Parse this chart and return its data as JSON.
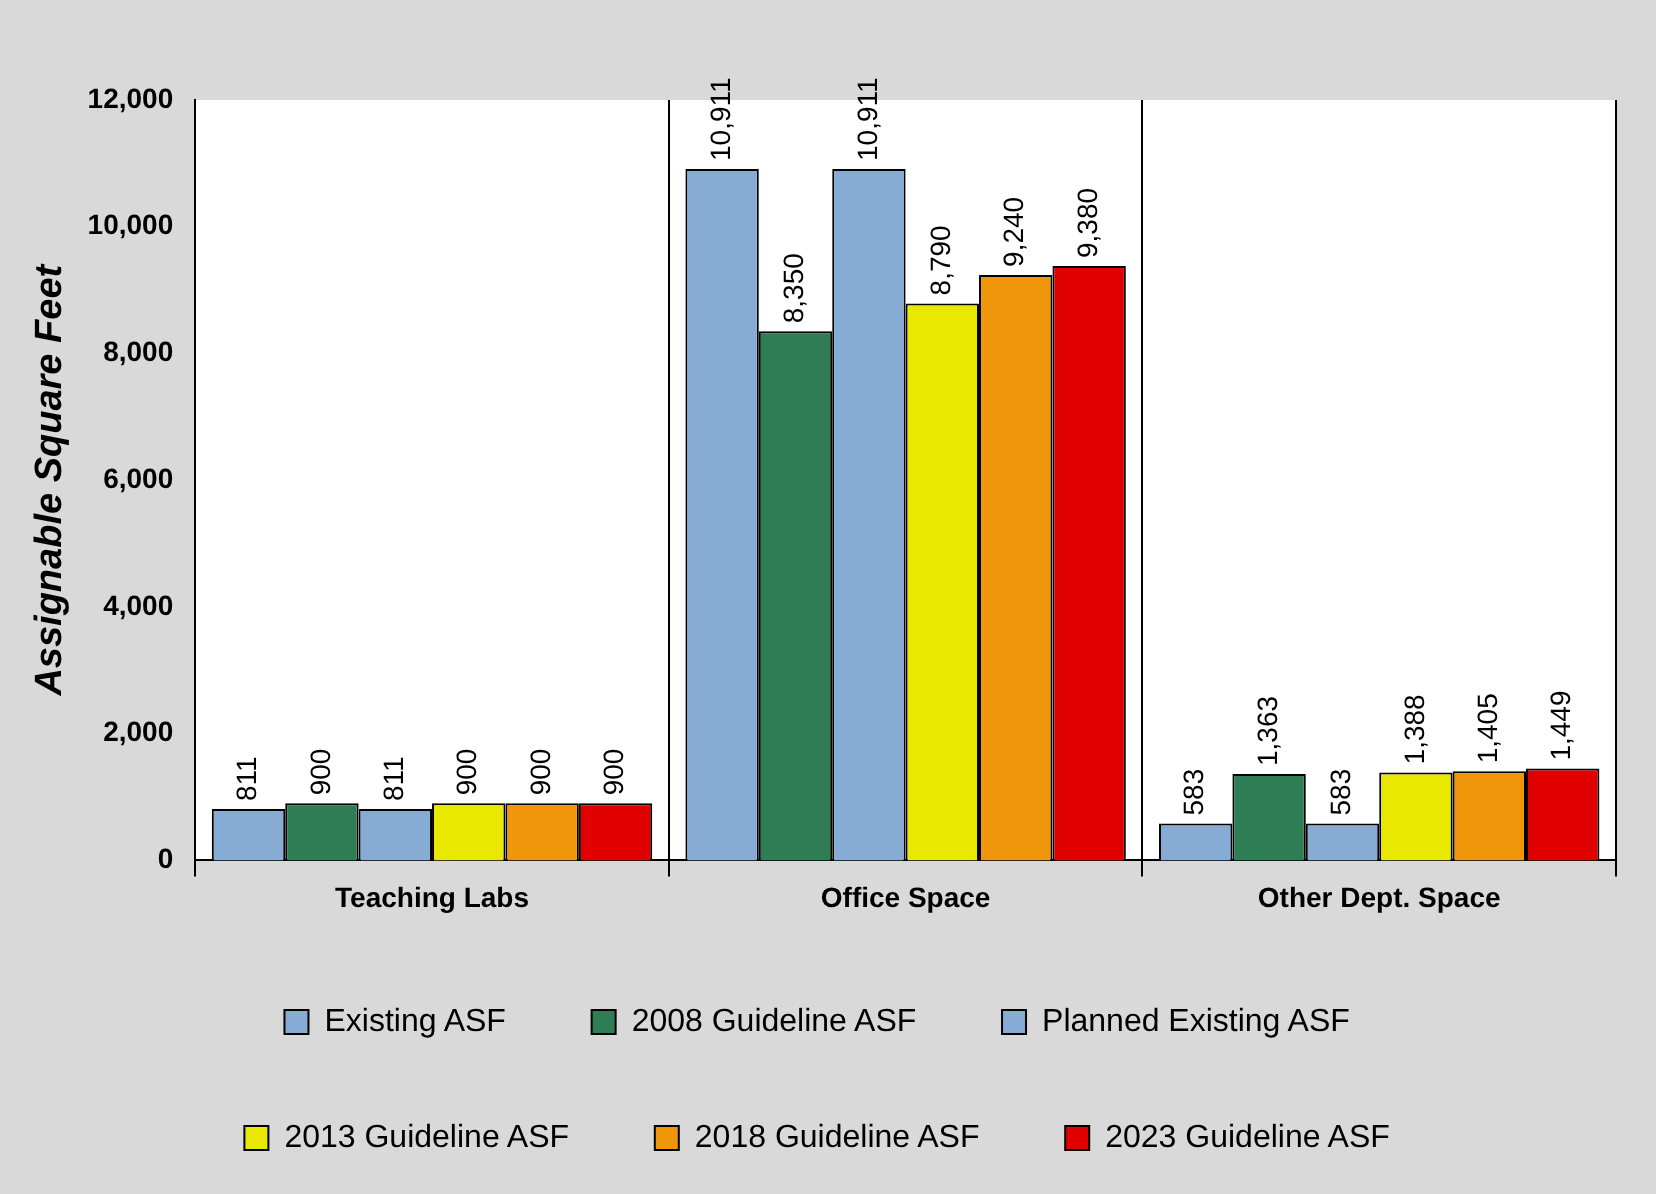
{
  "chart_data": {
    "type": "bar",
    "ylabel": "Assignable Square Feet",
    "categories": [
      "Teaching Labs",
      "Office Space",
      "Other Dept. Space"
    ],
    "series": [
      {
        "name": "Existing ASF",
        "color": "#86acd6",
        "values": [
          811,
          10911,
          583
        ],
        "value_labels": [
          "811",
          "10,911",
          "583"
        ]
      },
      {
        "name": "2008 Guideline ASF",
        "color": "#2e7d55",
        "values": [
          900,
          8350,
          1363
        ],
        "value_labels": [
          "900",
          "8,350",
          "1,363"
        ]
      },
      {
        "name": "Planned Existing ASF",
        "color": "#86acd6",
        "values": [
          811,
          10911,
          583
        ],
        "value_labels": [
          "811",
          "10,911",
          "583"
        ]
      },
      {
        "name": "2013 Guideline ASF",
        "color": "#e8e800",
        "values": [
          900,
          8790,
          1388
        ],
        "value_labels": [
          "900",
          "8,790",
          "1,388"
        ]
      },
      {
        "name": "2018 Guideline ASF",
        "color": "#f0960a",
        "values": [
          900,
          9240,
          1405
        ],
        "value_labels": [
          "900",
          "9,240",
          "1,405"
        ]
      },
      {
        "name": "2023 Guideline ASF",
        "color": "#e00000",
        "values": [
          900,
          9380,
          1449
        ],
        "value_labels": [
          "900",
          "9,380",
          "1,449"
        ]
      }
    ],
    "ylim": [
      0,
      12000
    ],
    "yticks": [
      {
        "value": 0,
        "label": "0"
      },
      {
        "value": 2000,
        "label": "2,000"
      },
      {
        "value": 4000,
        "label": "4,000"
      },
      {
        "value": 6000,
        "label": "6,000"
      },
      {
        "value": 8000,
        "label": "8,000"
      },
      {
        "value": 10000,
        "label": "10,000"
      },
      {
        "value": 12000,
        "label": "12,000"
      }
    ],
    "grid": "x",
    "legend": "bottom"
  }
}
